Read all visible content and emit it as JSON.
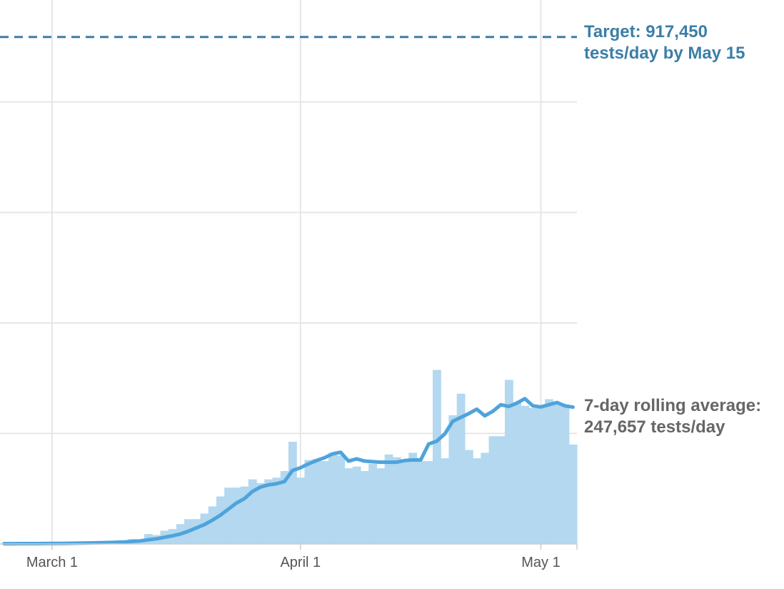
{
  "chart_data": {
    "type": "bar",
    "title": "",
    "xlabel": "",
    "ylabel": "",
    "ylim": [
      0,
      1000000
    ],
    "grid": true,
    "x_start": "2020-02-24",
    "x_end": "2020-05-05",
    "x_ticks": [
      {
        "date": "2020-03-01",
        "label": "March 1"
      },
      {
        "date": "2020-04-01",
        "label": "April 1"
      },
      {
        "date": "2020-05-01",
        "label": "May 1"
      }
    ],
    "y_gridlines": [
      0,
      200000,
      400000,
      600000,
      800000,
      1000000
    ],
    "series": [
      {
        "name": "",
        "kind": "bar",
        "color": "#b3d8ef",
        "x": [
          "2020-02-24",
          "2020-02-25",
          "2020-02-26",
          "2020-02-27",
          "2020-02-28",
          "2020-02-29",
          "2020-03-01",
          "2020-03-02",
          "2020-03-03",
          "2020-03-04",
          "2020-03-05",
          "2020-03-06",
          "2020-03-07",
          "2020-03-08",
          "2020-03-09",
          "2020-03-10",
          "2020-03-11",
          "2020-03-12",
          "2020-03-13",
          "2020-03-14",
          "2020-03-15",
          "2020-03-16",
          "2020-03-17",
          "2020-03-18",
          "2020-03-19",
          "2020-03-20",
          "2020-03-21",
          "2020-03-22",
          "2020-03-23",
          "2020-03-24",
          "2020-03-25",
          "2020-03-26",
          "2020-03-27",
          "2020-03-28",
          "2020-03-29",
          "2020-03-30",
          "2020-03-31",
          "2020-04-01",
          "2020-04-02",
          "2020-04-03",
          "2020-04-04",
          "2020-04-05",
          "2020-04-06",
          "2020-04-07",
          "2020-04-08",
          "2020-04-09",
          "2020-04-10",
          "2020-04-11",
          "2020-04-12",
          "2020-04-13",
          "2020-04-14",
          "2020-04-15",
          "2020-04-16",
          "2020-04-17",
          "2020-04-18",
          "2020-04-19",
          "2020-04-20",
          "2020-04-21",
          "2020-04-22",
          "2020-04-23",
          "2020-04-24",
          "2020-04-25",
          "2020-04-26",
          "2020-04-27",
          "2020-04-28",
          "2020-04-29",
          "2020-04-30",
          "2020-05-01",
          "2020-05-02",
          "2020-05-03",
          "2020-05-04",
          "2020-05-05"
        ],
        "values": [
          500,
          600,
          700,
          800,
          900,
          1000,
          1200,
          1500,
          2000,
          2200,
          2500,
          3000,
          3500,
          4000,
          5000,
          6000,
          9000,
          7000,
          18000,
          16000,
          24000,
          27000,
          36000,
          45000,
          45000,
          55000,
          68000,
          86000,
          102000,
          102000,
          104000,
          117000,
          110000,
          117000,
          120000,
          132000,
          185000,
          120000,
          152000,
          154000,
          150000,
          165000,
          160000,
          137000,
          140000,
          132000,
          145000,
          137000,
          162000,
          157000,
          150000,
          165000,
          150000,
          150000,
          315000,
          155000,
          233000,
          272000,
          170000,
          155000,
          165000,
          195000,
          195000,
          297000,
          256000,
          250000,
          246000,
          248000,
          262000,
          254000,
          250000,
          180000
        ]
      },
      {
        "name": "7-day rolling average",
        "kind": "line",
        "color": "#4fa3dc",
        "values": [
          500,
          550,
          600,
          650,
          700,
          800,
          900,
          1000,
          1200,
          1400,
          1600,
          1900,
          2200,
          2600,
          3000,
          3600,
          4600,
          5500,
          7500,
          9300,
          12000,
          14700,
          18000,
          23000,
          29000,
          35000,
          43000,
          52000,
          63000,
          74000,
          82000,
          95000,
          103000,
          107000,
          109000,
          113000,
          133000,
          138000,
          145000,
          151000,
          156000,
          163000,
          166000,
          150000,
          154000,
          150000,
          149000,
          148000,
          148000,
          148000,
          151000,
          152000,
          152000,
          181000,
          186000,
          199000,
          222000,
          229000,
          236000,
          244000,
          232000,
          240000,
          252000,
          249000,
          255000,
          263000,
          250000,
          248000,
          252000,
          256000,
          250000,
          247657
        ]
      }
    ],
    "annotations": [
      {
        "id": "target",
        "value": 917450,
        "label_line1": "Target: 917,450",
        "label_line2": "tests/day by May 15",
        "color": "#3b7ea8"
      },
      {
        "id": "average",
        "value": 247657,
        "label_line1": "7-day rolling average:",
        "label_line2": "247,657 tests/day",
        "color": "#666666"
      }
    ]
  }
}
